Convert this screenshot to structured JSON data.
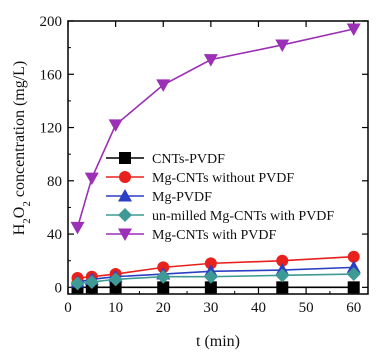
{
  "chart_data": {
    "type": "line",
    "title": "",
    "xlabel": "t (min)",
    "ylabel": {
      "prefix": "H",
      "sub1": "2",
      "mid": "O",
      "sub2": "2",
      "suffix": " concentration (mg/L)"
    },
    "xlim": [
      0,
      63
    ],
    "ylim": [
      -5,
      200
    ],
    "xticks": [
      0,
      10,
      20,
      30,
      40,
      50,
      60
    ],
    "yticks": [
      0,
      40,
      80,
      120,
      160,
      200
    ],
    "grid": false,
    "legend_position": "lower-center",
    "x": [
      2,
      5,
      10,
      20,
      30,
      45,
      60
    ],
    "series": [
      {
        "name": "CNTs-PVDF",
        "marker": "square",
        "color": "#000000",
        "values": [
          0,
          0,
          0,
          0,
          0,
          0,
          0
        ]
      },
      {
        "name": "Mg-CNTs without PVDF",
        "marker": "circle",
        "color": "#e8211d",
        "values": [
          7,
          8,
          10,
          15,
          18,
          20,
          23
        ]
      },
      {
        "name": "Mg-PVDF",
        "marker": "triangle-up",
        "color": "#2b3fc4",
        "values": [
          4,
          6,
          8,
          10,
          12,
          13,
          15
        ]
      },
      {
        "name": "un-milled Mg-CNTs with PVDF",
        "marker": "diamond",
        "color": "#3d9a94",
        "values": [
          3,
          4,
          6,
          8,
          8,
          9,
          10
        ]
      },
      {
        "name": "Mg-CNTs with PVDF",
        "marker": "triangle-down",
        "color": "#9b2fb5",
        "values": [
          45,
          82,
          122,
          152,
          171,
          182,
          194
        ]
      }
    ]
  }
}
